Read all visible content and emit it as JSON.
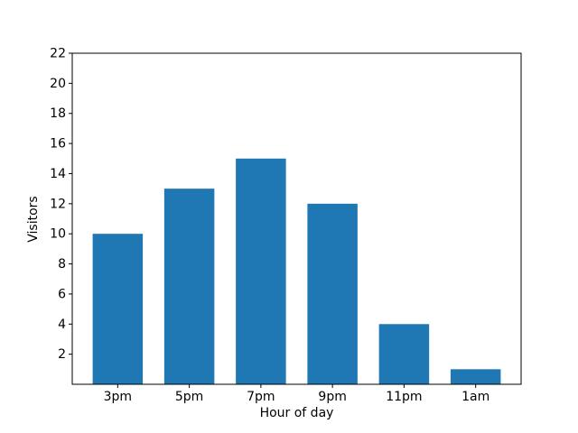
{
  "figure": {
    "background": "#ffffff"
  },
  "chart_data": {
    "type": "bar",
    "categories": [
      "3pm",
      "5pm",
      "7pm",
      "9pm",
      "11pm",
      "1am"
    ],
    "values": [
      10,
      13,
      15,
      12,
      4,
      1
    ],
    "title": "",
    "xlabel": "Hour of day",
    "ylabel": "Visitors",
    "ylim": [
      0,
      22
    ],
    "yticks": [
      2,
      4,
      6,
      8,
      10,
      12,
      14,
      16,
      18,
      20,
      22
    ],
    "bar_color": "#1f77b4",
    "axis_color": "#000000",
    "grid": false,
    "legend_position": "none"
  }
}
